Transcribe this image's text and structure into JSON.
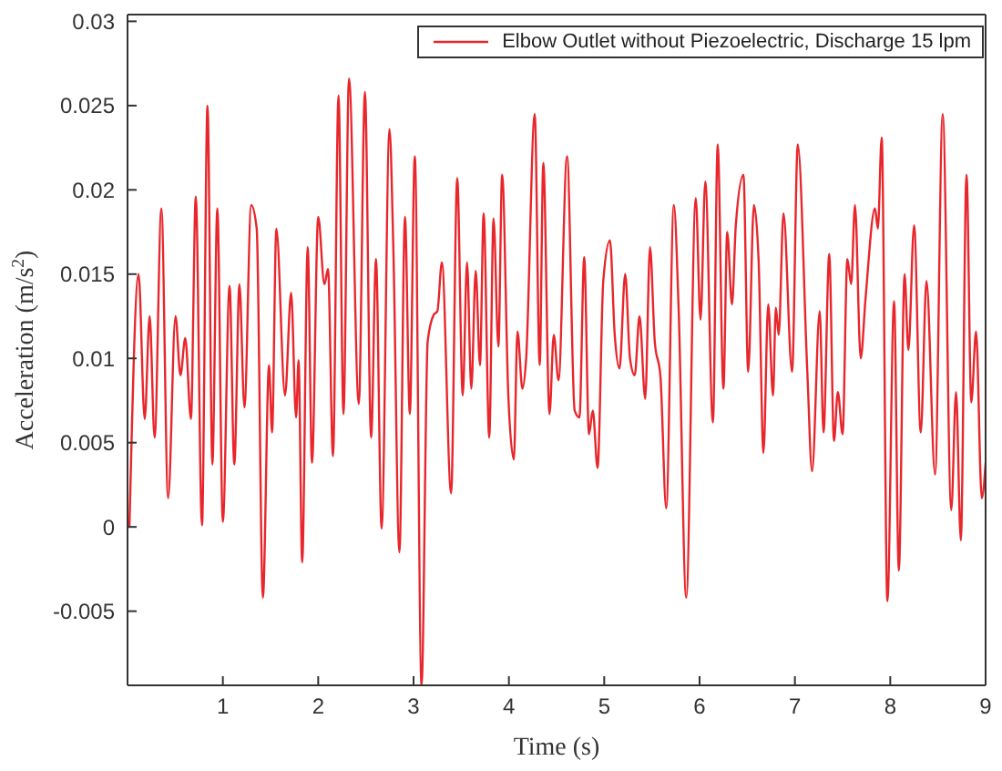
{
  "chart_data": {
    "type": "line",
    "xlabel": "Time (s)",
    "ylabel": "Acceleration (m/s$^{2}$)",
    "xlim": [
      0,
      9
    ],
    "xticks": [
      1,
      2,
      3,
      4,
      5,
      6,
      7,
      8,
      9
    ],
    "ylim": [
      -0.0094,
      0.0304
    ],
    "yticks": [
      -0.005,
      0,
      0.005,
      0.01,
      0.015,
      0.02,
      0.025,
      0.03
    ],
    "grid": false,
    "legend": "top right",
    "marker": "none",
    "line_style": "solid",
    "series": [
      {
        "name": "Elbow Outlet without Piezoelectric, Discharge 15 lpm",
        "color": "#e8262b",
        "x": [
          0.02,
          0.116,
          0.18,
          0.232,
          0.284,
          0.355,
          0.426,
          0.503,
          0.555,
          0.606,
          0.665,
          0.716,
          0.781,
          0.839,
          0.89,
          0.942,
          1.0,
          1.07,
          1.12,
          1.174,
          1.226,
          1.297,
          1.355,
          1.42,
          1.484,
          1.516,
          1.561,
          1.652,
          1.716,
          1.768,
          1.794,
          1.832,
          1.89,
          1.935,
          2.0,
          2.065,
          2.103,
          2.155,
          2.213,
          2.265,
          2.323,
          2.426,
          2.49,
          2.555,
          2.606,
          2.665,
          2.748,
          2.787,
          2.852,
          2.91,
          2.961,
          3.013,
          3.084,
          3.148,
          3.213,
          3.25,
          3.297,
          3.394,
          3.458,
          3.516,
          3.561,
          3.606,
          3.652,
          3.697,
          3.735,
          3.794,
          3.839,
          3.89,
          3.929,
          3.994,
          4.052,
          4.09,
          4.142,
          4.18,
          4.271,
          4.323,
          4.361,
          4.426,
          4.471,
          4.52,
          4.61,
          4.69,
          4.74,
          4.79,
          4.84,
          4.88,
          4.93,
          4.99,
          5.06,
          5.11,
          5.16,
          5.22,
          5.27,
          5.32,
          5.37,
          5.43,
          5.48,
          5.53,
          5.59,
          5.65,
          5.73,
          5.78,
          5.86,
          5.96,
          6.01,
          6.06,
          6.14,
          6.19,
          6.25,
          6.29,
          6.34,
          6.38,
          6.46,
          6.51,
          6.57,
          6.62,
          6.67,
          6.72,
          6.77,
          6.8,
          6.83,
          6.88,
          6.97,
          7.03,
          7.13,
          7.18,
          7.26,
          7.3,
          7.36,
          7.41,
          7.45,
          7.5,
          7.55,
          7.59,
          7.63,
          7.69,
          7.74,
          7.84,
          7.87,
          7.91,
          7.97,
          8.04,
          8.09,
          8.15,
          8.19,
          8.25,
          8.32,
          8.38,
          8.47,
          8.55,
          8.64,
          8.69,
          8.74,
          8.8,
          8.85,
          8.9,
          8.96,
          9.0
        ],
        "values": [
          0.0,
          0.015,
          0.0064,
          0.0125,
          0.0053,
          0.0189,
          0.0017,
          0.0125,
          0.009,
          0.0112,
          0.0064,
          0.0196,
          0.0001,
          0.025,
          0.0037,
          0.0189,
          0.0003,
          0.0143,
          0.0037,
          0.0144,
          0.0071,
          0.0191,
          0.0177,
          -0.0042,
          0.0096,
          0.0056,
          0.0177,
          0.0078,
          0.0139,
          0.0065,
          0.0099,
          -0.0021,
          0.0166,
          0.0038,
          0.0184,
          0.0144,
          0.0153,
          0.0042,
          0.0256,
          0.0067,
          0.0266,
          0.0073,
          0.0258,
          0.0053,
          0.0159,
          -0.0001,
          0.0236,
          0.0168,
          -0.0015,
          0.0184,
          0.0067,
          0.022,
          -0.0094,
          0.011,
          0.0126,
          0.0128,
          0.0157,
          0.002,
          0.0207,
          0.0078,
          0.0157,
          0.0082,
          0.0152,
          0.0096,
          0.0186,
          0.0053,
          0.0183,
          0.0107,
          0.0209,
          0.0078,
          0.004,
          0.0116,
          0.0082,
          0.0099,
          0.0245,
          0.0096,
          0.0216,
          0.0067,
          0.0114,
          0.0087,
          0.022,
          0.0069,
          0.0065,
          0.016,
          0.0055,
          0.0069,
          0.0035,
          0.0146,
          0.017,
          0.0114,
          0.0094,
          0.015,
          0.01,
          0.009,
          0.0125,
          0.0076,
          0.0166,
          0.011,
          0.0089,
          0.0011,
          0.0191,
          0.013,
          -0.0042,
          0.0195,
          0.0123,
          0.0205,
          0.0062,
          0.0227,
          0.0082,
          0.0175,
          0.0132,
          0.0179,
          0.0209,
          0.0092,
          0.0191,
          0.0157,
          0.0044,
          0.0132,
          0.0078,
          0.013,
          0.0114,
          0.0186,
          0.0092,
          0.0227,
          0.0092,
          0.0033,
          0.0128,
          0.0056,
          0.0162,
          0.0051,
          0.008,
          0.0055,
          0.0159,
          0.0144,
          0.0191,
          0.01,
          0.0135,
          0.0189,
          0.0177,
          0.0231,
          -0.0044,
          0.0134,
          -0.0026,
          0.015,
          0.0105,
          0.0179,
          0.0056,
          0.0146,
          0.0031,
          0.0245,
          0.001,
          0.008,
          -0.0008,
          0.0209,
          0.0074,
          0.0116,
          0.0017,
          0.0038
        ]
      }
    ]
  }
}
